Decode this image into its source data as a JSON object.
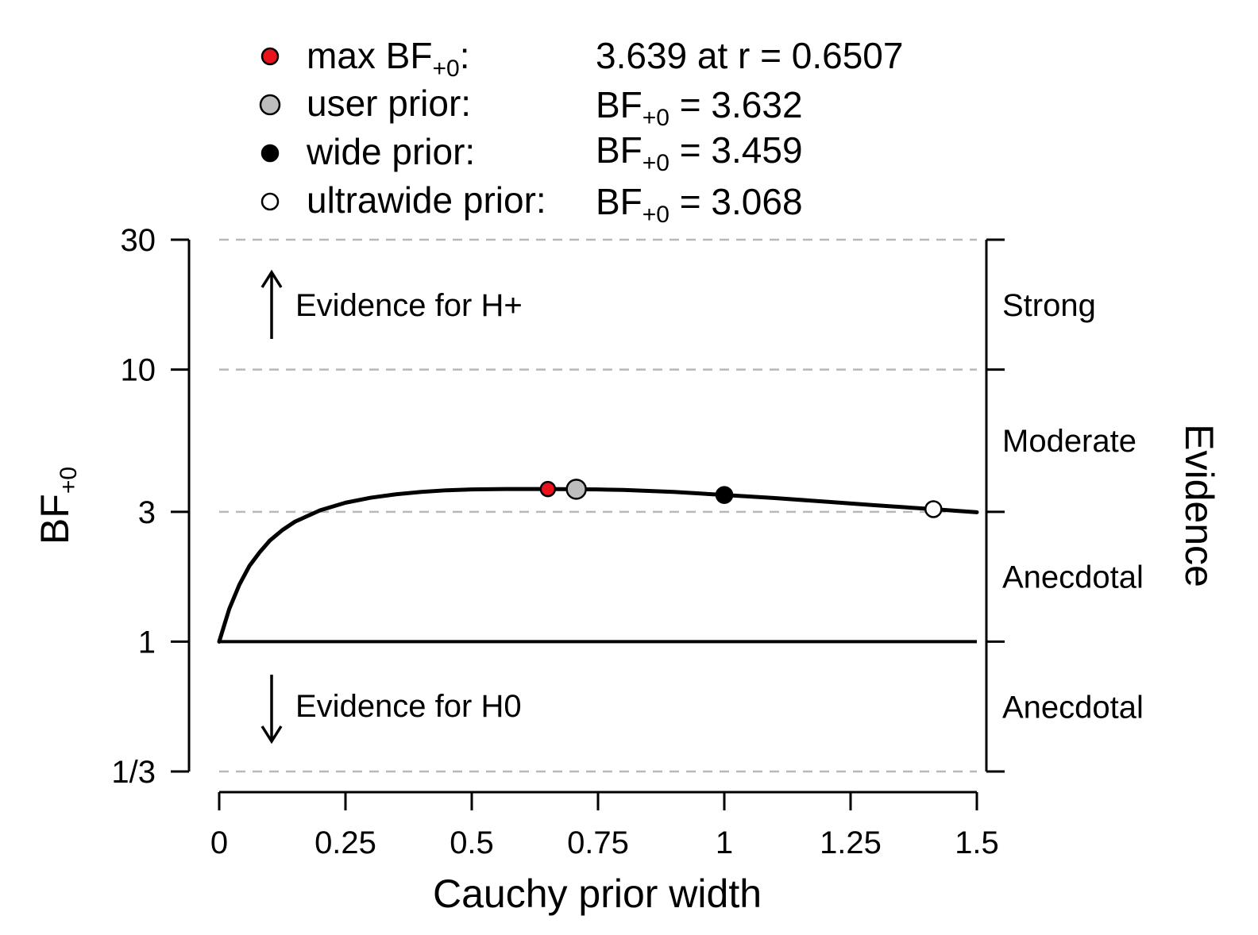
{
  "chart_data": {
    "type": "line",
    "xlabel": "Cauchy prior width",
    "ylabel_main": "BF",
    "ylabel_sub": "+0",
    "xlim": [
      0,
      1.5
    ],
    "x_ticks": [
      0,
      0.25,
      0.5,
      0.75,
      1,
      1.25,
      1.5
    ],
    "x_tick_labels": [
      "0",
      "0.25",
      "0.5",
      "0.75",
      "1",
      "1.25",
      "1.5"
    ],
    "y_scale": "log",
    "y_ticks": [
      0.3333,
      1,
      3,
      10,
      30
    ],
    "y_tick_labels": [
      "1/3",
      "1",
      "3",
      "10",
      "30"
    ],
    "grid_dashed_at": [
      0.3333,
      3,
      10,
      30
    ],
    "reference_line": 1,
    "curve": {
      "x": [
        0,
        0.01,
        0.02,
        0.04,
        0.06,
        0.08,
        0.1,
        0.125,
        0.15,
        0.2,
        0.25,
        0.3,
        0.35,
        0.4,
        0.45,
        0.5,
        0.55,
        0.6,
        0.65,
        0.7,
        0.75,
        0.8,
        0.9,
        1.0,
        1.1,
        1.2,
        1.3,
        1.414,
        1.5
      ],
      "y": [
        1.0,
        1.15,
        1.32,
        1.62,
        1.9,
        2.13,
        2.35,
        2.57,
        2.76,
        3.04,
        3.24,
        3.38,
        3.48,
        3.55,
        3.6,
        3.625,
        3.636,
        3.639,
        3.639,
        3.633,
        3.625,
        3.61,
        3.55,
        3.459,
        3.37,
        3.27,
        3.17,
        3.068,
        2.99
      ]
    },
    "points": [
      {
        "name": "max",
        "x": 0.6507,
        "y": 3.639,
        "color": "#e8131c",
        "size": "small"
      },
      {
        "name": "user",
        "x": 0.707,
        "y": 3.632,
        "color": "#bdbdbd",
        "size": "large"
      },
      {
        "name": "wide",
        "x": 1.0,
        "y": 3.459,
        "color": "#000000",
        "size": "medium"
      },
      {
        "name": "ultrawide",
        "x": 1.414,
        "y": 3.068,
        "color": "#ffffff",
        "size": "medium"
      }
    ],
    "legend": [
      {
        "marker_color": "#e8131c",
        "label_main": "max BF",
        "label_sub": "+0",
        "label_suffix": ":",
        "value_prefix": "",
        "value_sub": "",
        "value_text": "3.639 at r = 0.6507"
      },
      {
        "marker_color": "#bdbdbd",
        "label_main": "user prior:",
        "label_sub": "",
        "label_suffix": "",
        "value_prefix": "BF",
        "value_sub": "+0",
        "value_text": " = 3.632"
      },
      {
        "marker_color": "#000000",
        "label_main": "wide prior:",
        "label_sub": "",
        "label_suffix": "",
        "value_prefix": "BF",
        "value_sub": "+0",
        "value_text": " = 3.459"
      },
      {
        "marker_color": "#ffffff",
        "label_main": "ultrawide prior:",
        "label_sub": "",
        "label_suffix": "",
        "value_prefix": "BF",
        "value_sub": "+0",
        "value_text": " = 3.068"
      }
    ],
    "annotations": {
      "h_plus": "Evidence for H+",
      "h_zero": "Evidence for H0"
    },
    "evidence_axis": {
      "title": "Evidence",
      "labels": [
        "Strong",
        "Moderate",
        "Anecdotal",
        "Anecdotal"
      ],
      "label_centers": [
        17.32,
        5.477,
        1.732,
        0.577
      ]
    }
  }
}
